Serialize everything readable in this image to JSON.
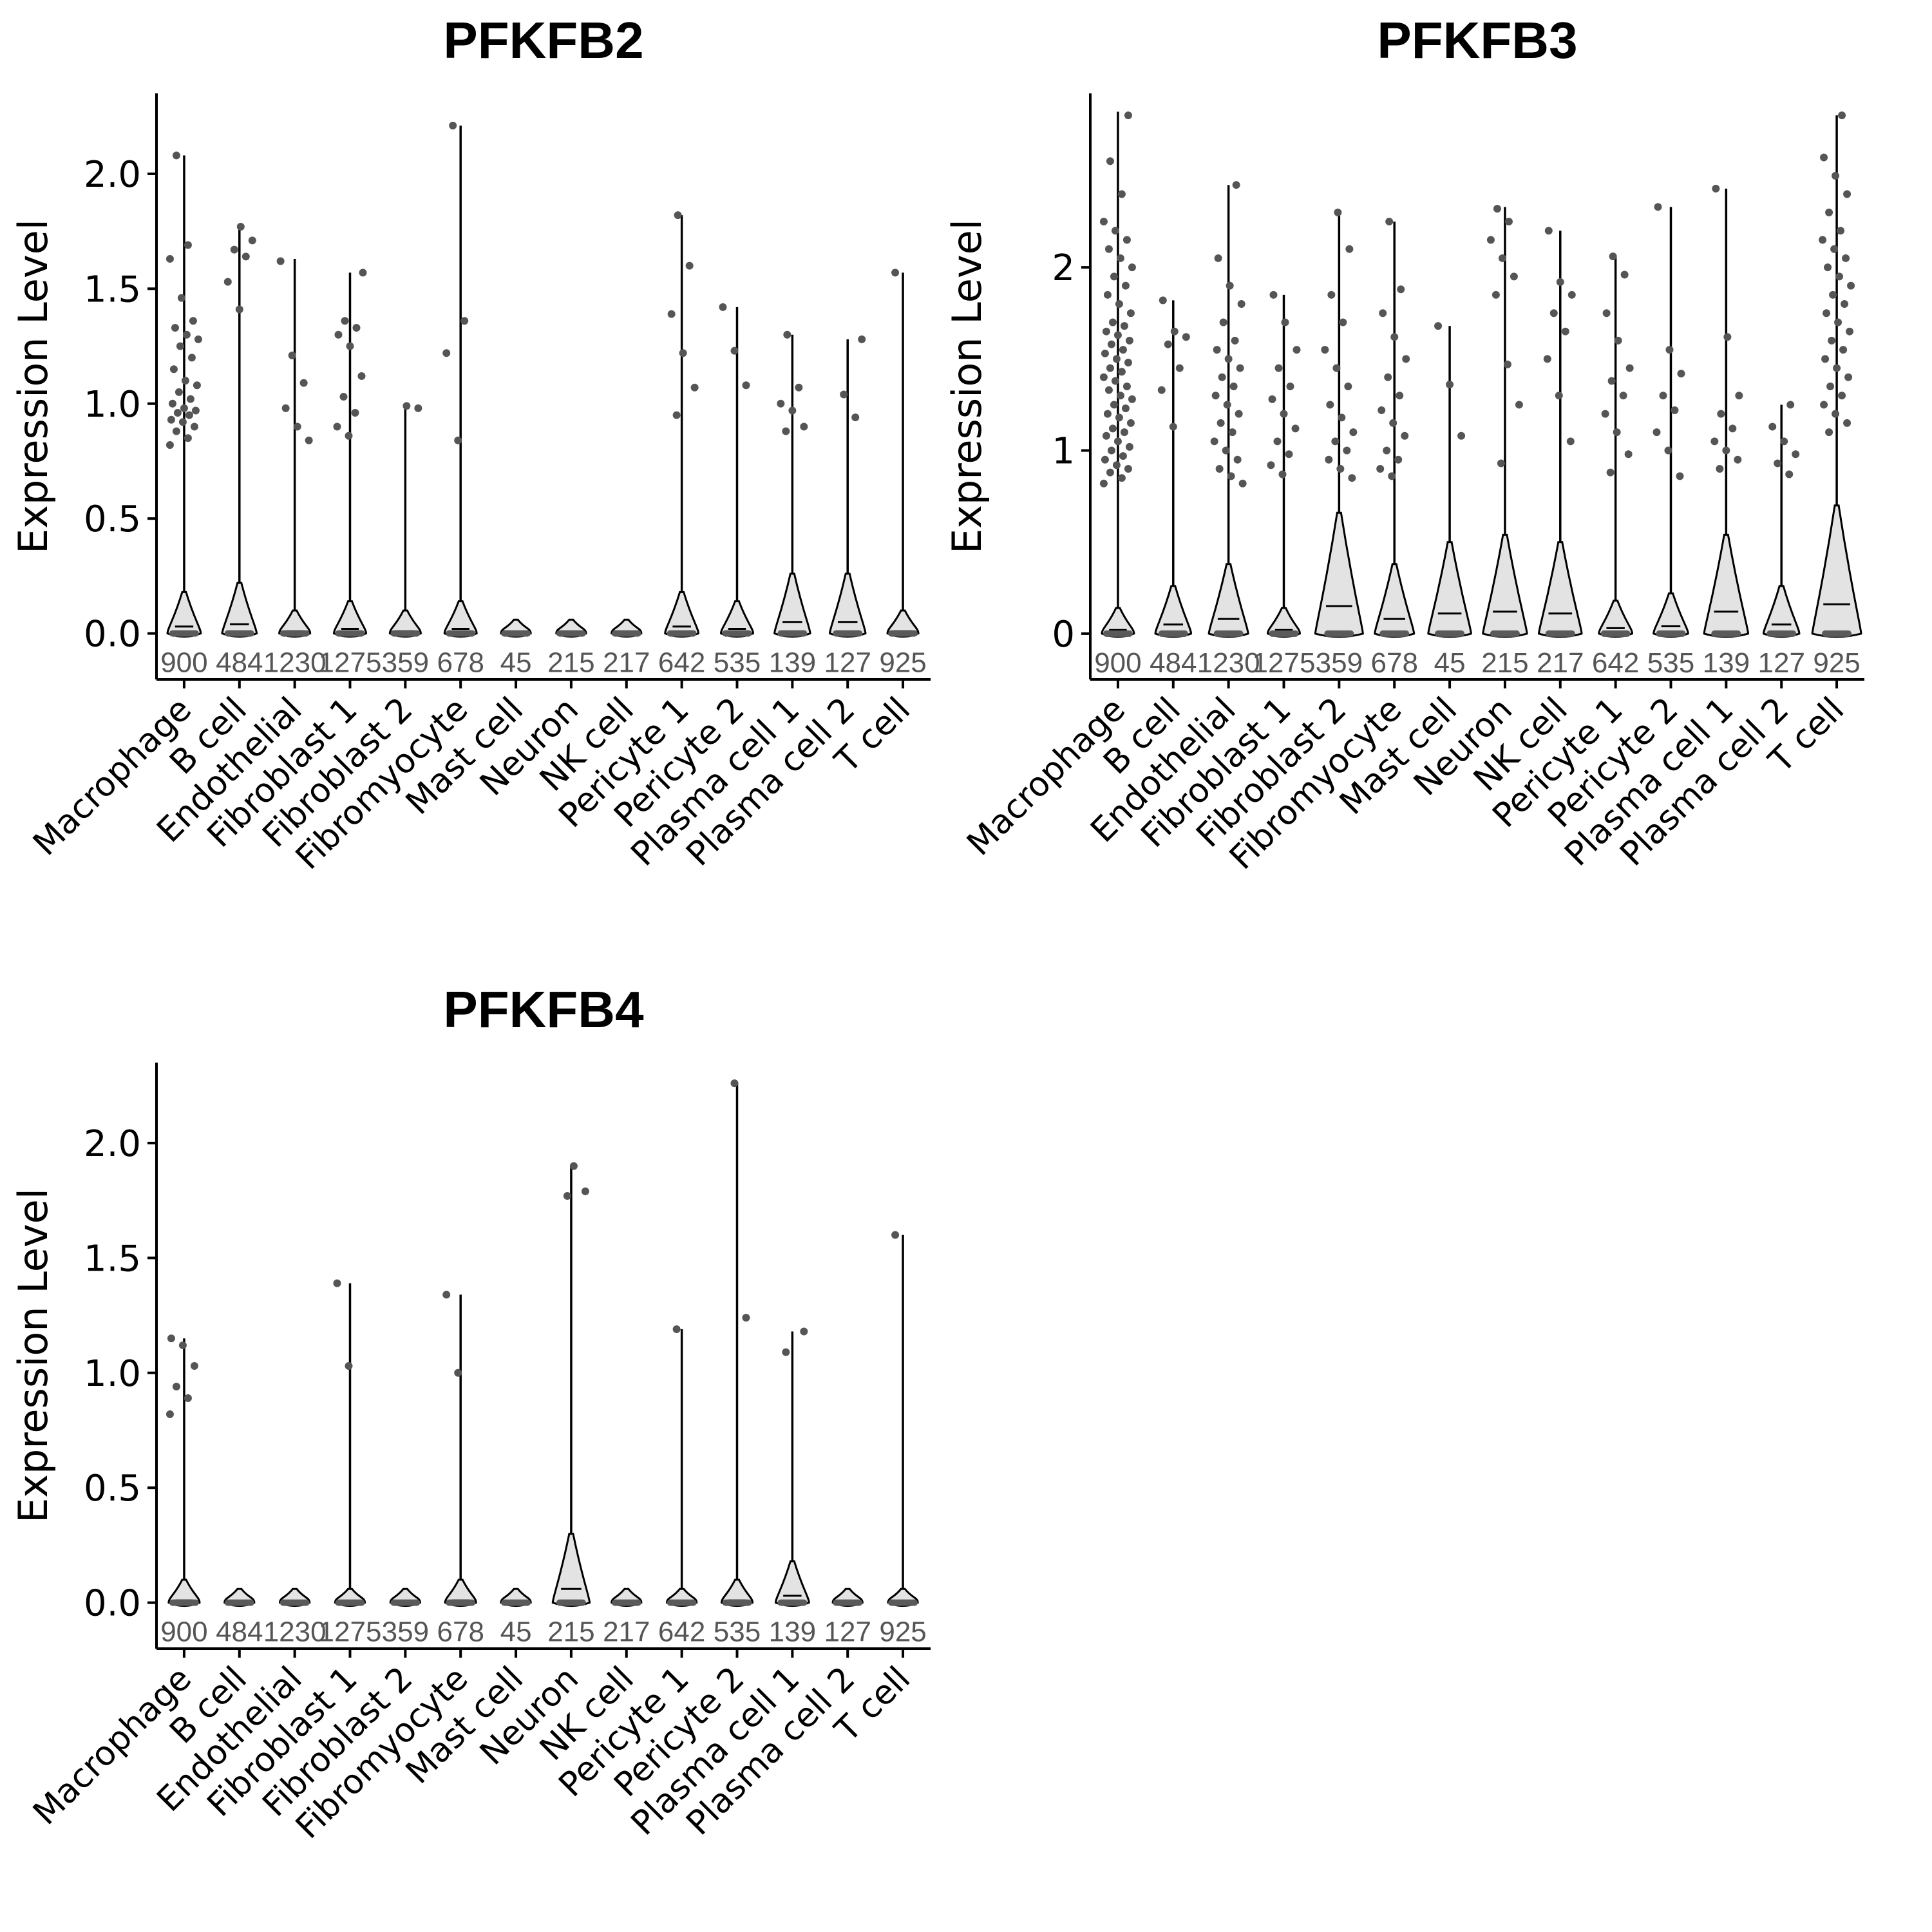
{
  "chart_data": [
    {
      "type": "violin",
      "title": "PFKFB2",
      "ylabel": "Expression Level",
      "ylim": [
        -0.2,
        2.35
      ],
      "yticks": [
        "0.0",
        "0.5",
        "1.0",
        "1.5",
        "2.0"
      ],
      "ytick_values": [
        0,
        0.5,
        1.0,
        1.5,
        2.0
      ],
      "categories": [
        "Macrophage",
        "B cell",
        "Endothelial",
        "Fibroblast 1",
        "Fibroblast 2",
        "Fibromyocyte",
        "Mast cell",
        "Neuron",
        "NK cell",
        "Pericyte 1",
        "Pericyte 2",
        "Plasma cell 1",
        "Plasma cell 2",
        "T cell"
      ],
      "counts": [
        "900",
        "484",
        "1230",
        "1275",
        "359",
        "678",
        "45",
        "215",
        "217",
        "642",
        "535",
        "139",
        "127",
        "925"
      ],
      "max_values": [
        2.08,
        1.77,
        1.63,
        1.57,
        1.0,
        2.21,
        0.0,
        0.0,
        0.0,
        1.82,
        1.42,
        1.3,
        1.28,
        1.57
      ],
      "median_values": [
        0.03,
        0.04,
        0.01,
        0.02,
        0.01,
        0.02,
        0.0,
        0.0,
        0.0,
        0.03,
        0.02,
        0.05,
        0.05,
        0.01
      ],
      "points": [
        [
          0.82,
          0.85,
          0.88,
          0.9,
          0.92,
          0.93,
          0.95,
          0.96,
          0.97,
          0.98,
          1.0,
          1.02,
          1.05,
          1.08,
          1.1,
          1.15,
          1.2,
          1.25,
          1.28,
          1.3,
          1.33,
          1.36,
          1.46,
          1.63,
          1.69,
          2.08
        ],
        [
          1.41,
          1.53,
          1.64,
          1.67,
          1.71,
          1.77
        ],
        [
          0.84,
          0.9,
          0.98,
          1.09,
          1.21,
          1.62
        ],
        [
          0.86,
          0.9,
          0.96,
          1.03,
          1.12,
          1.25,
          1.3,
          1.33,
          1.36,
          1.57
        ],
        [
          0.98,
          0.99
        ],
        [
          0.84,
          1.22,
          1.36,
          2.21
        ],
        [],
        [],
        [],
        [
          0.95,
          1.07,
          1.22,
          1.39,
          1.6,
          1.82
        ],
        [
          1.08,
          1.23,
          1.42
        ],
        [
          0.88,
          0.9,
          0.97,
          1.0,
          1.07,
          1.3
        ],
        [
          0.94,
          1.04,
          1.28
        ],
        [
          1.57
        ]
      ]
    },
    {
      "type": "violin",
      "title": "PFKFB3",
      "ylabel": "Expression Level",
      "ylim": [
        -0.25,
        2.95
      ],
      "yticks": [
        "0",
        "1",
        "2"
      ],
      "ytick_values": [
        0,
        1,
        2
      ],
      "categories": [
        "Macrophage",
        "B cell",
        "Endothelial",
        "Fibroblast 1",
        "Fibroblast 2",
        "Fibromyocyte",
        "Mast cell",
        "Neuron",
        "NK cell",
        "Pericyte 1",
        "Pericyte 2",
        "Plasma cell 1",
        "Plasma cell 2",
        "T cell"
      ],
      "counts": [
        "900",
        "484",
        "1230",
        "1275",
        "359",
        "678",
        "45",
        "215",
        "217",
        "642",
        "535",
        "139",
        "127",
        "925"
      ],
      "max_values": [
        2.85,
        1.82,
        2.45,
        1.85,
        2.3,
        2.25,
        1.68,
        2.33,
        2.2,
        2.06,
        2.33,
        2.43,
        1.25,
        2.83
      ],
      "median_values": [
        0.02,
        0.05,
        0.08,
        0.02,
        0.15,
        0.08,
        0.11,
        0.12,
        0.11,
        0.03,
        0.04,
        0.12,
        0.05,
        0.16
      ],
      "points": [
        [
          0.82,
          0.85,
          0.88,
          0.9,
          0.92,
          0.95,
          0.97,
          1.0,
          1.02,
          1.05,
          1.08,
          1.1,
          1.12,
          1.15,
          1.18,
          1.2,
          1.23,
          1.25,
          1.28,
          1.3,
          1.33,
          1.35,
          1.38,
          1.4,
          1.43,
          1.45,
          1.48,
          1.5,
          1.53,
          1.55,
          1.58,
          1.6,
          1.63,
          1.65,
          1.68,
          1.7,
          1.75,
          1.8,
          1.85,
          1.9,
          1.95,
          2.0,
          2.05,
          2.1,
          2.15,
          2.2,
          2.25,
          2.4,
          2.58,
          2.83
        ],
        [
          1.13,
          1.33,
          1.45,
          1.58,
          1.62,
          1.65,
          1.82
        ],
        [
          0.82,
          0.86,
          0.9,
          0.95,
          1.0,
          1.05,
          1.1,
          1.15,
          1.2,
          1.25,
          1.3,
          1.35,
          1.4,
          1.45,
          1.5,
          1.55,
          1.6,
          1.7,
          1.8,
          1.9,
          2.05,
          2.45
        ],
        [
          0.87,
          0.92,
          0.98,
          1.05,
          1.12,
          1.2,
          1.28,
          1.35,
          1.45,
          1.55,
          1.7,
          1.85
        ],
        [
          0.85,
          0.9,
          0.95,
          1.0,
          1.05,
          1.1,
          1.18,
          1.25,
          1.35,
          1.45,
          1.55,
          1.7,
          1.85,
          2.1,
          2.3
        ],
        [
          0.86,
          0.9,
          0.95,
          1.0,
          1.08,
          1.15,
          1.22,
          1.3,
          1.4,
          1.5,
          1.62,
          1.75,
          1.88,
          2.25
        ],
        [
          1.08,
          1.36,
          1.68
        ],
        [
          0.93,
          1.25,
          1.47,
          1.85,
          1.95,
          2.05,
          2.15,
          2.25,
          2.32
        ],
        [
          1.05,
          1.3,
          1.5,
          1.65,
          1.75,
          1.85,
          1.92,
          2.2
        ],
        [
          0.88,
          0.98,
          1.1,
          1.2,
          1.3,
          1.38,
          1.45,
          1.6,
          1.75,
          1.96,
          2.06
        ],
        [
          0.86,
          1.0,
          1.1,
          1.22,
          1.3,
          1.42,
          1.55,
          2.33
        ],
        [
          0.9,
          0.95,
          1.0,
          1.05,
          1.12,
          1.2,
          1.3,
          1.62,
          2.43
        ],
        [
          0.87,
          0.93,
          0.98,
          1.05,
          1.13,
          1.25
        ],
        [
          1.1,
          1.15,
          1.2,
          1.25,
          1.3,
          1.35,
          1.4,
          1.45,
          1.5,
          1.55,
          1.6,
          1.65,
          1.7,
          1.75,
          1.8,
          1.85,
          1.9,
          1.95,
          2.0,
          2.05,
          2.1,
          2.15,
          2.2,
          2.3,
          2.4,
          2.5,
          2.6,
          2.83
        ]
      ]
    },
    {
      "type": "violin",
      "title": "PFKFB4",
      "ylabel": "Expression Level",
      "ylim": [
        -0.2,
        2.35
      ],
      "yticks": [
        "0.0",
        "0.5",
        "1.0",
        "1.5",
        "2.0"
      ],
      "ytick_values": [
        0,
        0.5,
        1.0,
        1.5,
        2.0
      ],
      "categories": [
        "Macrophage",
        "B cell",
        "Endothelial",
        "Fibroblast 1",
        "Fibroblast 2",
        "Fibromyocyte",
        "Mast cell",
        "Neuron",
        "NK cell",
        "Pericyte 1",
        "Pericyte 2",
        "Plasma cell 1",
        "Plasma cell 2",
        "T cell"
      ],
      "counts": [
        "900",
        "484",
        "1230",
        "1275",
        "359",
        "678",
        "45",
        "215",
        "217",
        "642",
        "535",
        "139",
        "127",
        "925"
      ],
      "max_values": [
        1.15,
        0.0,
        0.0,
        1.39,
        0.0,
        1.34,
        0.0,
        1.9,
        0.0,
        1.19,
        2.26,
        1.18,
        0.0,
        1.6
      ],
      "median_values": [
        0.01,
        0.0,
        0.0,
        0.0,
        0.0,
        0.01,
        0.0,
        0.06,
        0.0,
        0.0,
        0.01,
        0.03,
        0.0,
        0.0
      ],
      "points": [
        [
          0.82,
          0.89,
          0.94,
          1.03,
          1.12,
          1.15
        ],
        [],
        [],
        [
          1.03,
          1.39
        ],
        [],
        [
          1.0,
          1.34
        ],
        [],
        [
          1.77,
          1.79,
          1.9
        ],
        [],
        [
          1.19
        ],
        [
          1.24,
          2.26
        ],
        [
          1.09,
          1.18
        ],
        [],
        [
          1.6
        ]
      ]
    }
  ]
}
